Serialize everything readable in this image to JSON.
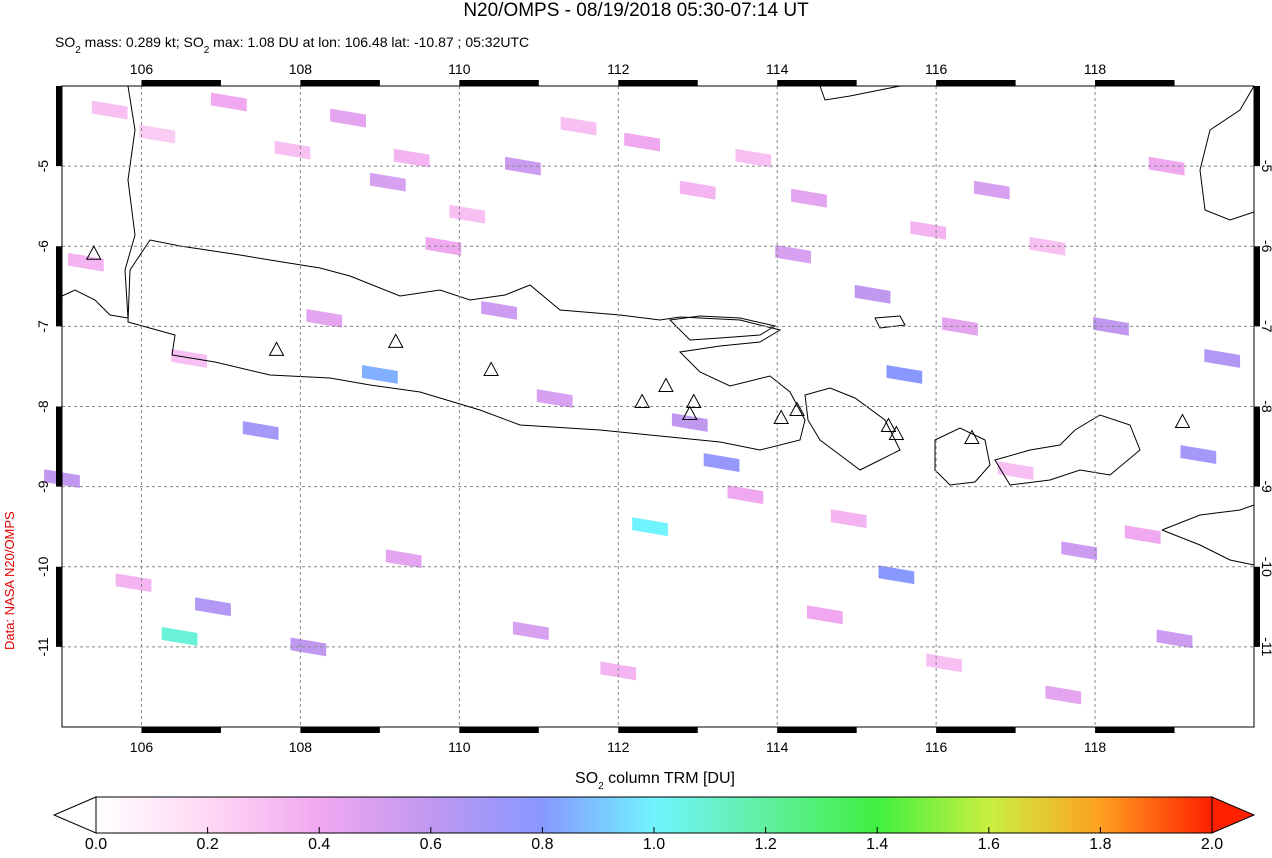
{
  "chart_data": {
    "type": "map",
    "title": "N20/OMPS - 08/19/2018 05:30-07:14 UT",
    "subtitle": [
      "SO",
      "2",
      " mass: 0.289 kt; SO",
      "2",
      " max: 1.08 DU at lon: 106.48 lat: -10.87 ; 05:32UTC"
    ],
    "credit": "Data: NASA N20/OMPS",
    "xlim": [
      105,
      120
    ],
    "ylim": [
      -12,
      -4
    ],
    "xticks": [
      106,
      108,
      110,
      112,
      114,
      116,
      118
    ],
    "yticks": [
      -5,
      -6,
      -7,
      -8,
      -9,
      -10,
      -11
    ],
    "grid": true,
    "cells": {
      "lon": [
        105.6,
        106.2,
        107.1,
        107.9,
        108.6,
        109.1,
        109.4,
        110.1,
        110.8,
        111.5,
        112.3,
        113.0,
        113.3,
        113.7,
        114.4,
        115.2,
        115.6,
        115.9,
        116.7,
        117.4,
        118.2,
        118.9,
        119.6,
        105.3,
        106.6,
        107.5,
        108.3,
        109.0,
        109.8,
        110.5,
        111.2,
        112.4,
        112.9,
        113.6,
        114.2,
        114.9,
        115.5,
        116.3,
        117.0,
        117.8,
        118.6,
        119.3,
        105.9,
        106.9,
        108.1,
        109.3,
        110.9,
        112.0,
        114.6,
        116.1,
        117.6,
        119.0,
        105.0,
        106.48
      ],
      "lat": [
        -4.3,
        -4.6,
        -4.2,
        -4.8,
        -4.4,
        -5.2,
        -4.9,
        -5.6,
        -5.0,
        -4.5,
        -4.7,
        -5.3,
        -8.7,
        -4.9,
        -5.4,
        -6.6,
        -7.6,
        -5.8,
        -5.3,
        -6.0,
        -7.0,
        -5.0,
        -7.4,
        -6.2,
        -7.4,
        -8.3,
        -6.9,
        -7.6,
        -6.0,
        -6.8,
        -7.9,
        -9.5,
        -8.2,
        -9.1,
        -6.1,
        -9.4,
        -10.1,
        -7.0,
        -8.8,
        -9.8,
        -9.6,
        -8.6,
        -10.2,
        -10.5,
        -11.0,
        -9.9,
        -10.8,
        -11.3,
        -10.6,
        -11.2,
        -11.6,
        -10.9,
        -8.9,
        -10.87
      ],
      "values": [
        0.3,
        0.25,
        0.4,
        0.3,
        0.45,
        0.5,
        0.35,
        0.3,
        0.55,
        0.3,
        0.4,
        0.35,
        0.75,
        0.3,
        0.45,
        0.6,
        0.8,
        0.35,
        0.5,
        0.3,
        0.6,
        0.4,
        0.65,
        0.35,
        0.3,
        0.7,
        0.45,
        0.85,
        0.4,
        0.55,
        0.5,
        1.0,
        0.6,
        0.4,
        0.5,
        0.35,
        0.8,
        0.45,
        0.3,
        0.55,
        0.4,
        0.7,
        0.35,
        0.65,
        0.6,
        0.45,
        0.5,
        0.35,
        0.4,
        0.3,
        0.45,
        0.55,
        0.6,
        1.08
      ]
    },
    "volcanoes": {
      "lon": [
        105.4,
        107.7,
        109.2,
        110.4,
        112.3,
        112.6,
        112.9,
        112.95,
        114.05,
        114.25,
        115.4,
        115.5,
        116.45,
        119.1
      ],
      "lat": [
        -6.1,
        -7.3,
        -7.2,
        -7.55,
        -7.95,
        -7.75,
        -8.1,
        -7.95,
        -8.15,
        -8.05,
        -8.25,
        -8.35,
        -8.4,
        -8.2
      ]
    },
    "colorbar": {
      "label": [
        "SO",
        "2",
        " column TRM [DU]"
      ],
      "lim": [
        0,
        2
      ],
      "ticks": [
        {
          "value": 0,
          "label": "0.0"
        },
        {
          "value": 0.2,
          "label": "0.2"
        },
        {
          "value": 0.4,
          "label": "0.4"
        },
        {
          "value": 0.6,
          "label": "0.6"
        },
        {
          "value": 0.8,
          "label": "0.8"
        },
        {
          "value": 1,
          "label": "1.0"
        },
        {
          "value": 1.2,
          "label": "1.2"
        },
        {
          "value": 1.4,
          "label": "1.4"
        },
        {
          "value": 1.6,
          "label": "1.6"
        },
        {
          "value": 1.8,
          "label": "1.8"
        },
        {
          "value": 2,
          "label": "2.0"
        }
      ],
      "colors": [
        "#ffffff",
        "#ffd8f4",
        "#f0a8f0",
        "#c098f0",
        "#8898ff",
        "#70f4ff",
        "#60f0a0",
        "#40f040",
        "#c8f040",
        "#ffa020",
        "#ff2000"
      ]
    }
  }
}
